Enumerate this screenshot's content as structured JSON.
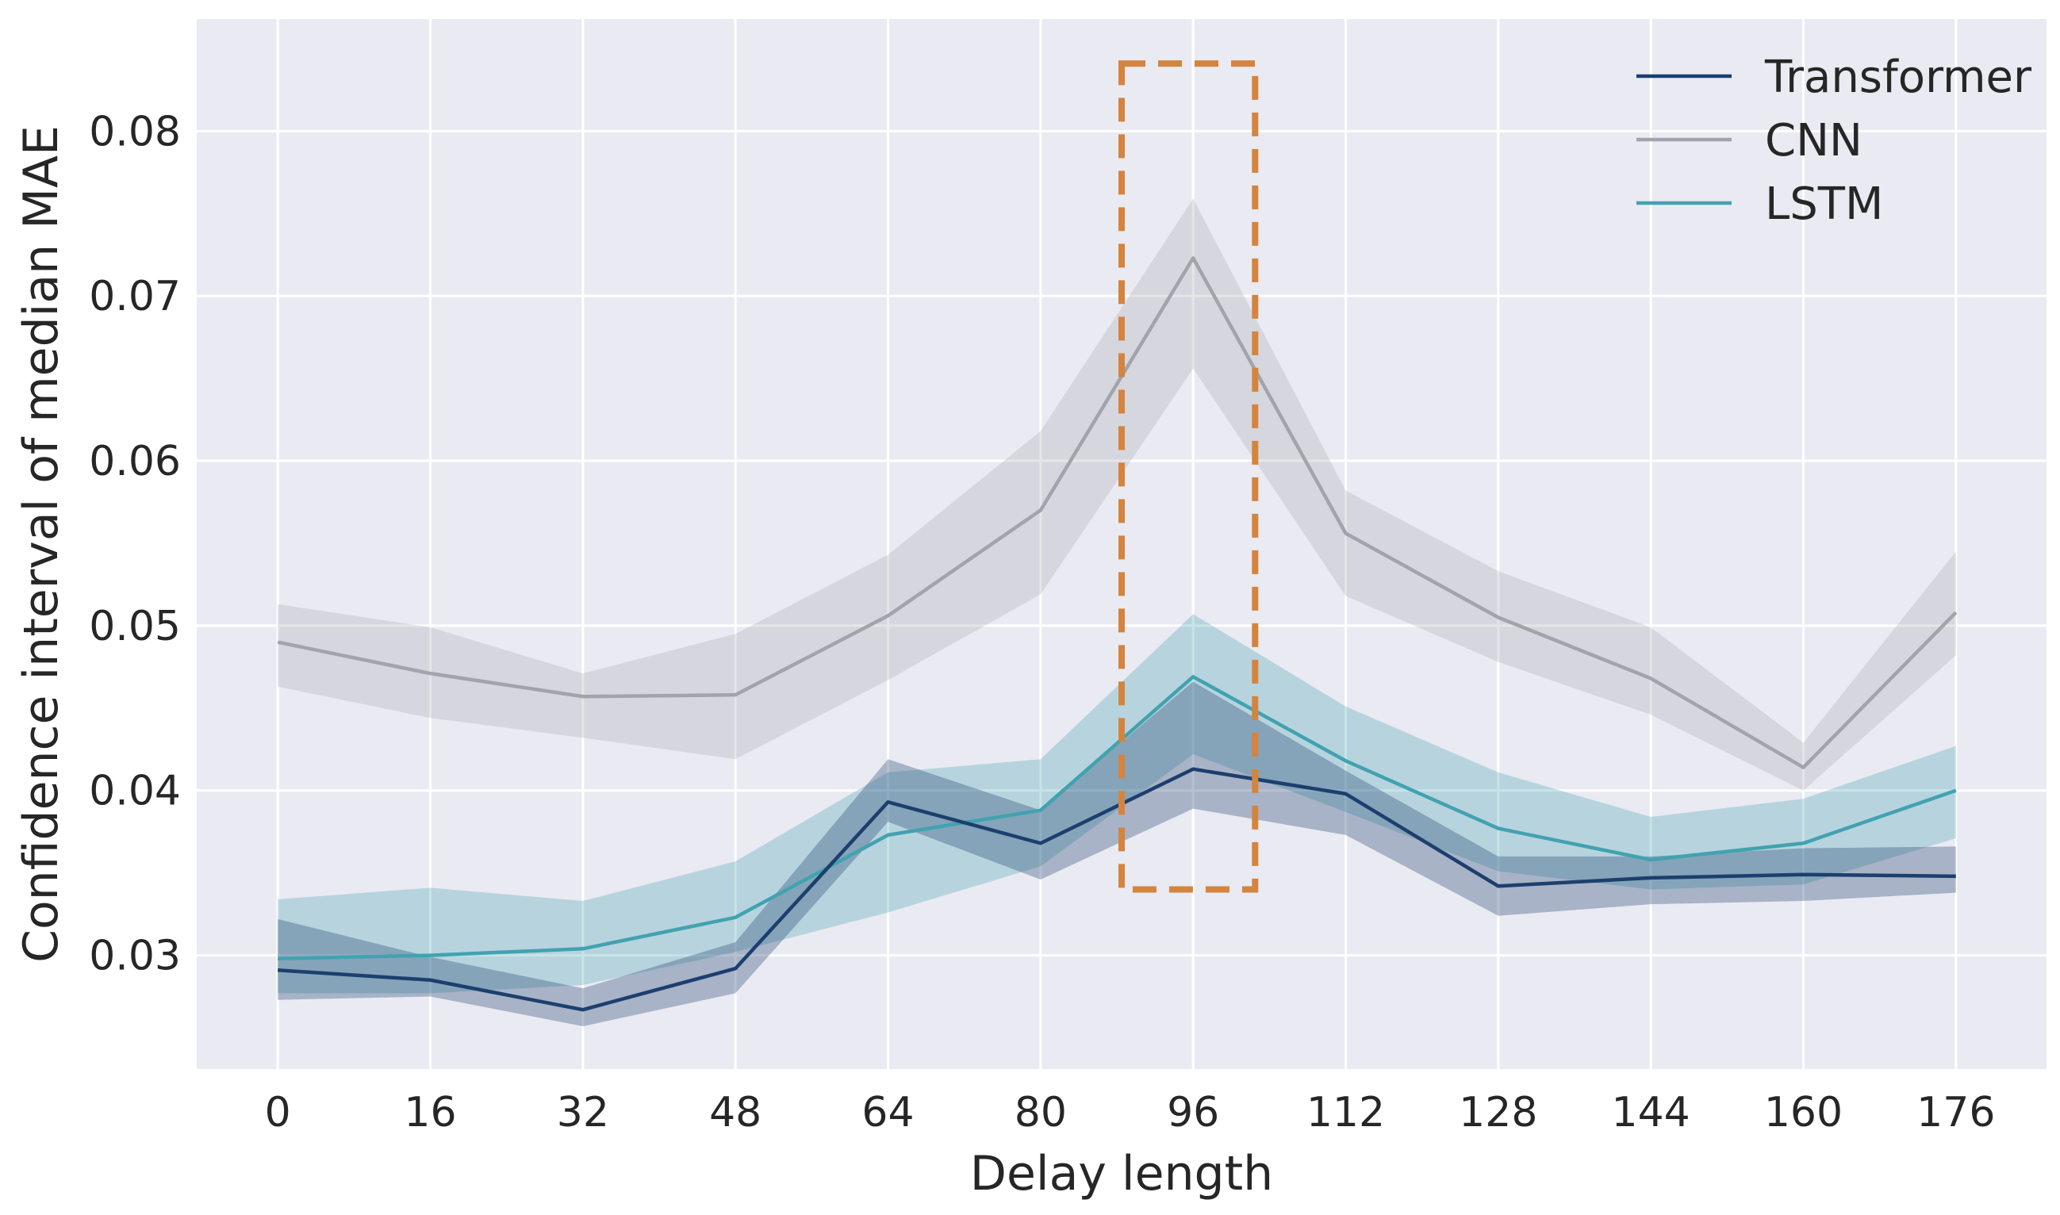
{
  "chart_data": {
    "type": "line",
    "title": "",
    "xlabel": "Delay length",
    "ylabel": "Confidence interval of median MAE",
    "x": [
      0,
      16,
      32,
      48,
      64,
      80,
      96,
      112,
      128,
      144,
      160,
      176
    ],
    "xticks": [
      "0",
      "16",
      "32",
      "48",
      "64",
      "80",
      "96",
      "112",
      "128",
      "144",
      "160",
      "176"
    ],
    "xlim": [
      -8.5,
      185.5
    ],
    "ylim": [
      0.0231,
      0.0868
    ],
    "yticks": [
      0.03,
      0.04,
      0.05,
      0.06,
      0.07,
      0.08
    ],
    "ytick_labels": [
      "0.03",
      "0.04",
      "0.05",
      "0.06",
      "0.07",
      "0.08"
    ],
    "grid": true,
    "legend_position": "top-right",
    "series": [
      {
        "name": "Transformer",
        "color": "#1c3f6e",
        "values": [
          0.0291,
          0.0285,
          0.0267,
          0.0292,
          0.0393,
          0.0368,
          0.0413,
          0.0398,
          0.0342,
          0.0347,
          0.0349,
          0.0348
        ],
        "lower": [
          0.0273,
          0.0275,
          0.0257,
          0.0277,
          0.0381,
          0.0346,
          0.0389,
          0.0373,
          0.0324,
          0.0331,
          0.0333,
          0.0338
        ],
        "upper": [
          0.0322,
          0.0299,
          0.028,
          0.0308,
          0.0419,
          0.0388,
          0.0466,
          0.0412,
          0.036,
          0.036,
          0.0365,
          0.0366
        ]
      },
      {
        "name": "CNN",
        "color": "#a3a3ab",
        "values": [
          0.049,
          0.0471,
          0.0457,
          0.0458,
          0.0506,
          0.057,
          0.0723,
          0.0556,
          0.0505,
          0.0468,
          0.0414,
          0.0508
        ],
        "lower": [
          0.0463,
          0.0444,
          0.0432,
          0.0419,
          0.0467,
          0.0519,
          0.0656,
          0.0518,
          0.0478,
          0.0446,
          0.04,
          0.0482
        ],
        "upper": [
          0.0513,
          0.0499,
          0.0471,
          0.0495,
          0.0543,
          0.0618,
          0.0759,
          0.0582,
          0.0533,
          0.0499,
          0.0429,
          0.0545
        ]
      },
      {
        "name": "LSTM",
        "color": "#42a2b0",
        "values": [
          0.0298,
          0.03,
          0.0304,
          0.0323,
          0.0373,
          0.0388,
          0.0469,
          0.0418,
          0.0377,
          0.0358,
          0.0368,
          0.04
        ],
        "lower": [
          0.0277,
          0.0277,
          0.0282,
          0.0302,
          0.0326,
          0.0354,
          0.0422,
          0.0387,
          0.0351,
          0.034,
          0.0343,
          0.0371
        ],
        "upper": [
          0.0334,
          0.0341,
          0.0333,
          0.0357,
          0.0411,
          0.0419,
          0.0507,
          0.0451,
          0.0411,
          0.0384,
          0.0395,
          0.0427
        ]
      }
    ],
    "highlight": {
      "x_range": [
        88.5,
        102.5
      ],
      "y_range": [
        0.034,
        0.0841
      ],
      "color": "#d4843d",
      "style": "dashed"
    }
  }
}
